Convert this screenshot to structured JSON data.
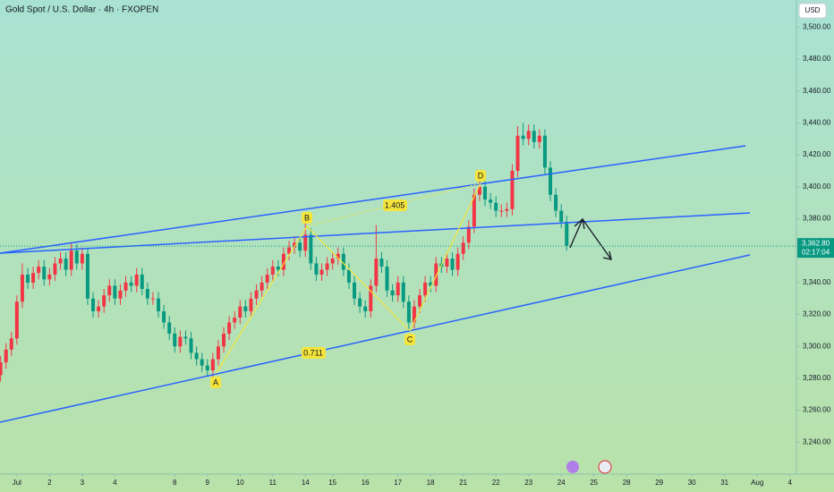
{
  "chart_data": {
    "type": "candlestick",
    "title": "Gold Spot / U.S. Dollar · 4h · FXOPEN",
    "currency": "USD",
    "up_color": "#f23645",
    "down_color": "#089981",
    "x": [
      -3,
      -2,
      -1,
      0,
      1,
      2,
      3,
      4,
      5,
      6,
      7,
      8,
      9,
      10,
      11,
      12,
      13,
      14,
      15,
      16,
      17,
      18,
      19,
      20,
      21,
      22,
      23,
      24,
      25,
      26,
      27,
      28,
      29,
      30,
      31,
      32,
      33,
      34,
      35,
      36,
      37,
      38,
      39,
      40,
      41,
      42,
      43,
      44,
      45,
      46,
      47,
      48,
      49,
      50,
      51,
      52,
      53,
      54,
      55,
      56,
      57,
      58,
      59,
      60,
      61,
      62,
      63,
      64,
      65,
      66,
      67,
      68,
      69,
      70,
      71,
      72,
      73,
      74,
      75,
      76,
      77,
      78,
      79,
      80,
      81,
      82,
      83,
      84,
      85,
      86,
      87,
      88,
      89,
      90,
      91,
      92,
      93,
      94,
      95,
      96,
      97,
      98,
      99,
      100,
      101
    ],
    "open": [
      3282,
      3290,
      3298,
      3305,
      3328,
      3345,
      3340,
      3346,
      3350,
      3342,
      3345,
      3352,
      3355,
      3348,
      3360,
      3352,
      3358,
      3330,
      3322,
      3325,
      3332,
      3338,
      3330,
      3335,
      3340,
      3338,
      3345,
      3336,
      3330,
      3330,
      3322,
      3315,
      3308,
      3300,
      3306,
      3305,
      3296,
      3292,
      3288,
      3285,
      3292,
      3300,
      3308,
      3315,
      3318,
      3325,
      3322,
      3330,
      3335,
      3340,
      3345,
      3350,
      3348,
      3358,
      3362,
      3365,
      3360,
      3370,
      3352,
      3345,
      3348,
      3352,
      3355,
      3358,
      3348,
      3340,
      3330,
      3325,
      3322,
      3338,
      3355,
      3350,
      3335,
      3332,
      3340,
      3328,
      3315,
      3325,
      3332,
      3340,
      3338,
      3352,
      3350,
      3355,
      3348,
      3358,
      3365,
      3375,
      3395,
      3400,
      3392,
      3390,
      3385,
      3385,
      3386,
      3410,
      3432,
      3430,
      3435,
      3428,
      3432,
      3412,
      3395,
      3385,
      3378
    ],
    "high": [
      3294,
      3302,
      3309,
      3332,
      3352,
      3349,
      3350,
      3354,
      3354,
      3349,
      3356,
      3359,
      3359,
      3365,
      3364,
      3362,
      3362,
      3334,
      3329,
      3336,
      3342,
      3342,
      3339,
      3344,
      3344,
      3349,
      3349,
      3340,
      3334,
      3334,
      3326,
      3319,
      3312,
      3310,
      3310,
      3309,
      3300,
      3296,
      3292,
      3296,
      3304,
      3312,
      3319,
      3322,
      3329,
      3329,
      3334,
      3339,
      3344,
      3349,
      3354,
      3354,
      3362,
      3366,
      3369,
      3369,
      3377,
      3374,
      3356,
      3352,
      3356,
      3359,
      3362,
      3362,
      3352,
      3344,
      3334,
      3329,
      3342,
      3376,
      3359,
      3354,
      3339,
      3344,
      3344,
      3332,
      3329,
      3336,
      3344,
      3344,
      3356,
      3356,
      3359,
      3359,
      3362,
      3369,
      3379,
      3399,
      3404,
      3404,
      3396,
      3394,
      3389,
      3390,
      3414,
      3438,
      3440,
      3439,
      3439,
      3436,
      3436,
      3416,
      3399,
      3389,
      3382
    ],
    "low": [
      3278,
      3286,
      3294,
      3301,
      3324,
      3336,
      3336,
      3342,
      3338,
      3338,
      3341,
      3348,
      3344,
      3344,
      3348,
      3348,
      3326,
      3318,
      3318,
      3321,
      3328,
      3326,
      3326,
      3331,
      3334,
      3334,
      3332,
      3326,
      3326,
      3318,
      3311,
      3304,
      3296,
      3296,
      3301,
      3292,
      3288,
      3284,
      3281,
      3281,
      3288,
      3296,
      3304,
      3311,
      3314,
      3318,
      3318,
      3326,
      3331,
      3336,
      3341,
      3344,
      3344,
      3354,
      3358,
      3356,
      3356,
      3348,
      3341,
      3341,
      3344,
      3348,
      3351,
      3344,
      3336,
      3326,
      3321,
      3318,
      3318,
      3334,
      3346,
      3331,
      3328,
      3328,
      3324,
      3309,
      3311,
      3321,
      3328,
      3334,
      3334,
      3346,
      3346,
      3344,
      3344,
      3354,
      3361,
      3371,
      3391,
      3388,
      3386,
      3381,
      3381,
      3381,
      3382,
      3406,
      3426,
      3426,
      3424,
      3424,
      3408,
      3391,
      3381,
      3374,
      3360
    ],
    "close": [
      3290,
      3298,
      3305,
      3328,
      3345,
      3340,
      3346,
      3350,
      3342,
      3345,
      3352,
      3355,
      3348,
      3360,
      3352,
      3358,
      3330,
      3322,
      3325,
      3332,
      3338,
      3330,
      3335,
      3340,
      3338,
      3345,
      3336,
      3330,
      3330,
      3322,
      3315,
      3308,
      3300,
      3306,
      3305,
      3296,
      3292,
      3288,
      3285,
      3292,
      3300,
      3308,
      3315,
      3318,
      3325,
      3322,
      3330,
      3335,
      3340,
      3345,
      3350,
      3348,
      3358,
      3362,
      3365,
      3360,
      3370,
      3352,
      3345,
      3348,
      3352,
      3355,
      3358,
      3348,
      3340,
      3330,
      3325,
      3322,
      3338,
      3355,
      3350,
      3335,
      3332,
      3340,
      3328,
      3315,
      3325,
      3332,
      3340,
      3338,
      3352,
      3350,
      3355,
      3348,
      3358,
      3365,
      3375,
      3395,
      3400,
      3392,
      3390,
      3385,
      3385,
      3386,
      3410,
      3432,
      3430,
      3435,
      3428,
      3432,
      3412,
      3395,
      3385,
      3378,
      3363
    ],
    "xlim": [
      -3.1,
      143.2
    ],
    "xticks": [
      {
        "value": 0,
        "label": "Jul"
      },
      {
        "value": 6,
        "label": "2"
      },
      {
        "value": 12,
        "label": "3"
      },
      {
        "value": 18,
        "label": "4"
      },
      {
        "value": 29,
        "label": "8"
      },
      {
        "value": 35,
        "label": "9"
      },
      {
        "value": 41,
        "label": "10"
      },
      {
        "value": 47,
        "label": "11"
      },
      {
        "value": 53,
        "label": "14"
      },
      {
        "value": 58,
        "label": "15"
      },
      {
        "value": 64,
        "label": "16"
      },
      {
        "value": 70,
        "label": "17"
      },
      {
        "value": 76,
        "label": "18"
      },
      {
        "value": 82,
        "label": "21"
      },
      {
        "value": 88,
        "label": "22"
      },
      {
        "value": 94,
        "label": "23"
      },
      {
        "value": 100,
        "label": "24"
      },
      {
        "value": 106,
        "label": "25"
      },
      {
        "value": 112,
        "label": "28"
      },
      {
        "value": 118,
        "label": "29"
      },
      {
        "value": 124,
        "label": "30"
      },
      {
        "value": 130,
        "label": "31"
      },
      {
        "value": 136,
        "label": "Aug"
      },
      {
        "value": 142,
        "label": "4"
      }
    ],
    "ylim": [
      3220,
      3517
    ],
    "yticks": [
      {
        "value": 3240,
        "label": "3,240.00"
      },
      {
        "value": 3260,
        "label": "3,260.00"
      },
      {
        "value": 3280,
        "label": "3,280.00"
      },
      {
        "value": 3300,
        "label": "3,300.00"
      },
      {
        "value": 3320,
        "label": "3,320.00"
      },
      {
        "value": 3340,
        "label": "3,340.00"
      },
      {
        "value": 3360,
        "label": "3,360.00"
      },
      {
        "value": 3380,
        "label": "3,380.00"
      },
      {
        "value": 3400,
        "label": "3,400.00"
      },
      {
        "value": 3420,
        "label": "3,420.00"
      },
      {
        "value": 3440,
        "label": "3,440.00"
      },
      {
        "value": 3460,
        "label": "3,460.00"
      },
      {
        "value": 3480,
        "label": "3,480.00"
      },
      {
        "value": 3500,
        "label": "3,500.00"
      }
    ],
    "last_price": {
      "value": 3362.8,
      "label": "3,362.80"
    },
    "countdown": "02:17:04",
    "pattern_labels": [
      "A",
      "B",
      "C",
      "D"
    ],
    "ratios": [
      "1.405",
      "0.711"
    ]
  }
}
